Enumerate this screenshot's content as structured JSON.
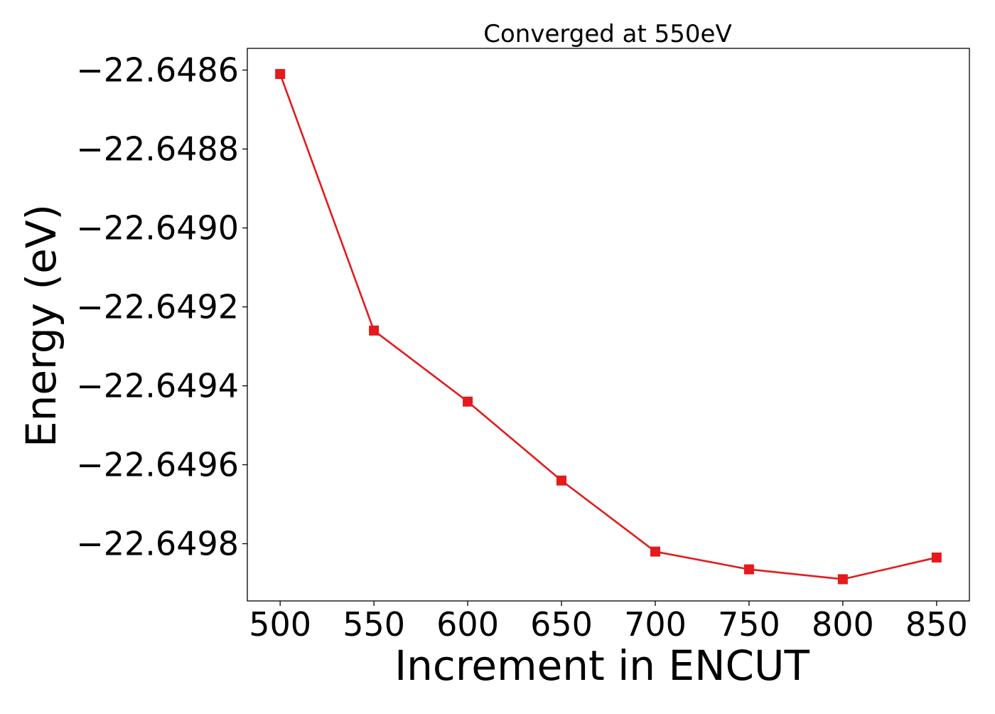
{
  "chart_data": {
    "type": "line",
    "title": "Converged at 550eV",
    "xlabel": "Increment in ENCUT",
    "ylabel": "Energy (eV)",
    "x": [
      500,
      550,
      600,
      650,
      700,
      750,
      800,
      850
    ],
    "series": [
      {
        "values": [
          -22.64861,
          -22.64926,
          -22.64944,
          -22.64964,
          -22.64982,
          -22.649865,
          -22.64989,
          -22.649835
        ],
        "color": "#e41a1c",
        "marker": "square"
      }
    ],
    "xlim": [
      482.5,
      867.5
    ],
    "ylim": [
      -22.649945,
      -22.648545
    ],
    "xticks": [
      500,
      550,
      600,
      650,
      700,
      750,
      800,
      850
    ],
    "xtick_labels": [
      "500",
      "550",
      "600",
      "650",
      "700",
      "750",
      "800",
      "850"
    ],
    "yticks": [
      -22.6486,
      -22.6488,
      -22.649,
      -22.6492,
      -22.6494,
      -22.6496,
      -22.6498
    ],
    "ytick_labels": [
      "−22.6486",
      "−22.6488",
      "−22.6490",
      "−22.6492",
      "−22.6494",
      "−22.6496",
      "−22.6498"
    ],
    "grid": false,
    "legend": "none"
  }
}
